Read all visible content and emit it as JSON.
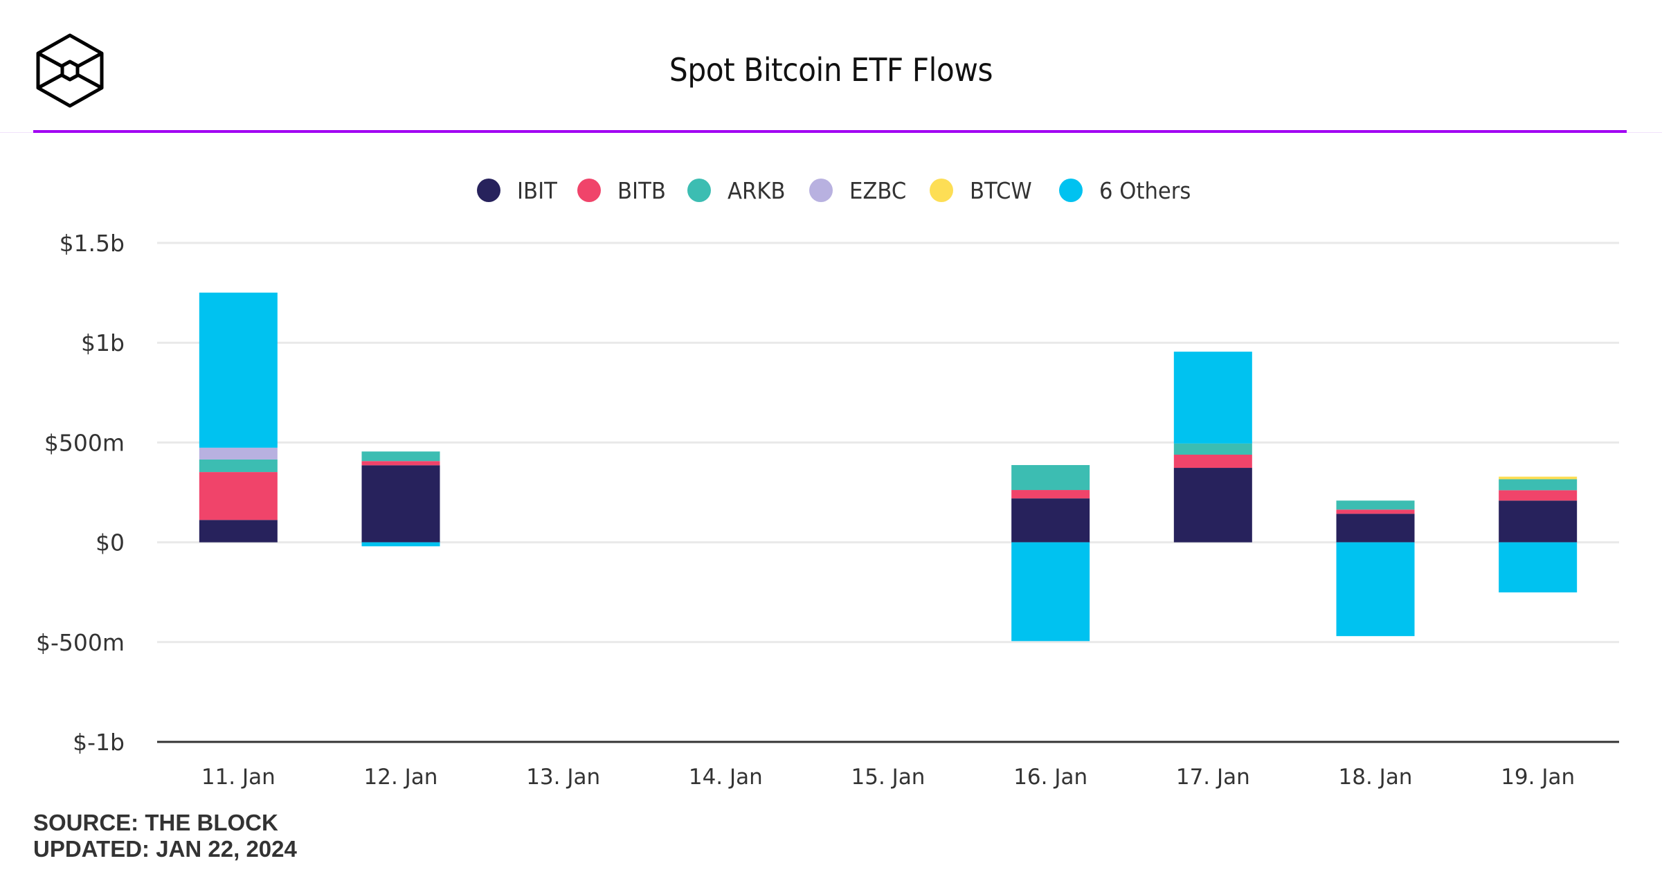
{
  "header": {
    "logo": "the-block-cube-logo",
    "title": "Spot Bitcoin ETF Flows",
    "accent_color": "#a100f2"
  },
  "legend": [
    {
      "name": "IBIT",
      "color": "#27225c"
    },
    {
      "name": "BITB",
      "color": "#f0446a"
    },
    {
      "name": "ARKB",
      "color": "#3cbdb2"
    },
    {
      "name": "EZBC",
      "color": "#b8b1e0"
    },
    {
      "name": "BTCW",
      "color": "#fdde55"
    },
    {
      "name": "6 Others",
      "color": "#00c2f0"
    }
  ],
  "chart_data": {
    "type": "bar",
    "stacked": true,
    "title": "Spot Bitcoin ETF Flows",
    "xlabel": "",
    "ylabel": "",
    "units": "USD millions",
    "categories": [
      "11. Jan",
      "12. Jan",
      "13. Jan",
      "14. Jan",
      "15. Jan",
      "16. Jan",
      "17. Jan",
      "18. Jan",
      "19. Jan"
    ],
    "series": [
      {
        "name": "IBIT",
        "color": "#27225c",
        "values": [
          112,
          386,
          0,
          0,
          0,
          220,
          373,
          143,
          209
        ]
      },
      {
        "name": "BITB",
        "color": "#f0446a",
        "values": [
          240,
          21,
          0,
          0,
          0,
          42,
          66,
          21,
          52
        ]
      },
      {
        "name": "ARKB",
        "color": "#3cbdb2",
        "values": [
          63,
          48,
          0,
          0,
          0,
          125,
          56,
          45,
          55
        ]
      },
      {
        "name": "EZBC",
        "color": "#b8b1e0",
        "values": [
          59,
          0,
          0,
          0,
          0,
          0,
          0,
          0,
          0
        ]
      },
      {
        "name": "BTCW",
        "color": "#fdde55",
        "values": [
          0,
          0,
          0,
          0,
          0,
          0,
          0,
          0,
          13
        ]
      },
      {
        "name": "6 Others",
        "color": "#00c2f0",
        "values": [
          777,
          -20,
          0,
          0,
          0,
          -495,
          460,
          -470,
          -251
        ]
      }
    ],
    "ylim": [
      -1000,
      1500
    ],
    "yticks": [
      {
        "value": 1500,
        "label": "$1.5b"
      },
      {
        "value": 1000,
        "label": "$1b"
      },
      {
        "value": 500,
        "label": "$500m"
      },
      {
        "value": 0,
        "label": "$0"
      },
      {
        "value": -500,
        "label": "$-500m"
      },
      {
        "value": -1000,
        "label": "$-1b"
      }
    ],
    "grid": true,
    "legend_position": "top-center"
  },
  "footer": {
    "source": "SOURCE: THE BLOCK",
    "updated": "UPDATED: JAN 22, 2024"
  }
}
